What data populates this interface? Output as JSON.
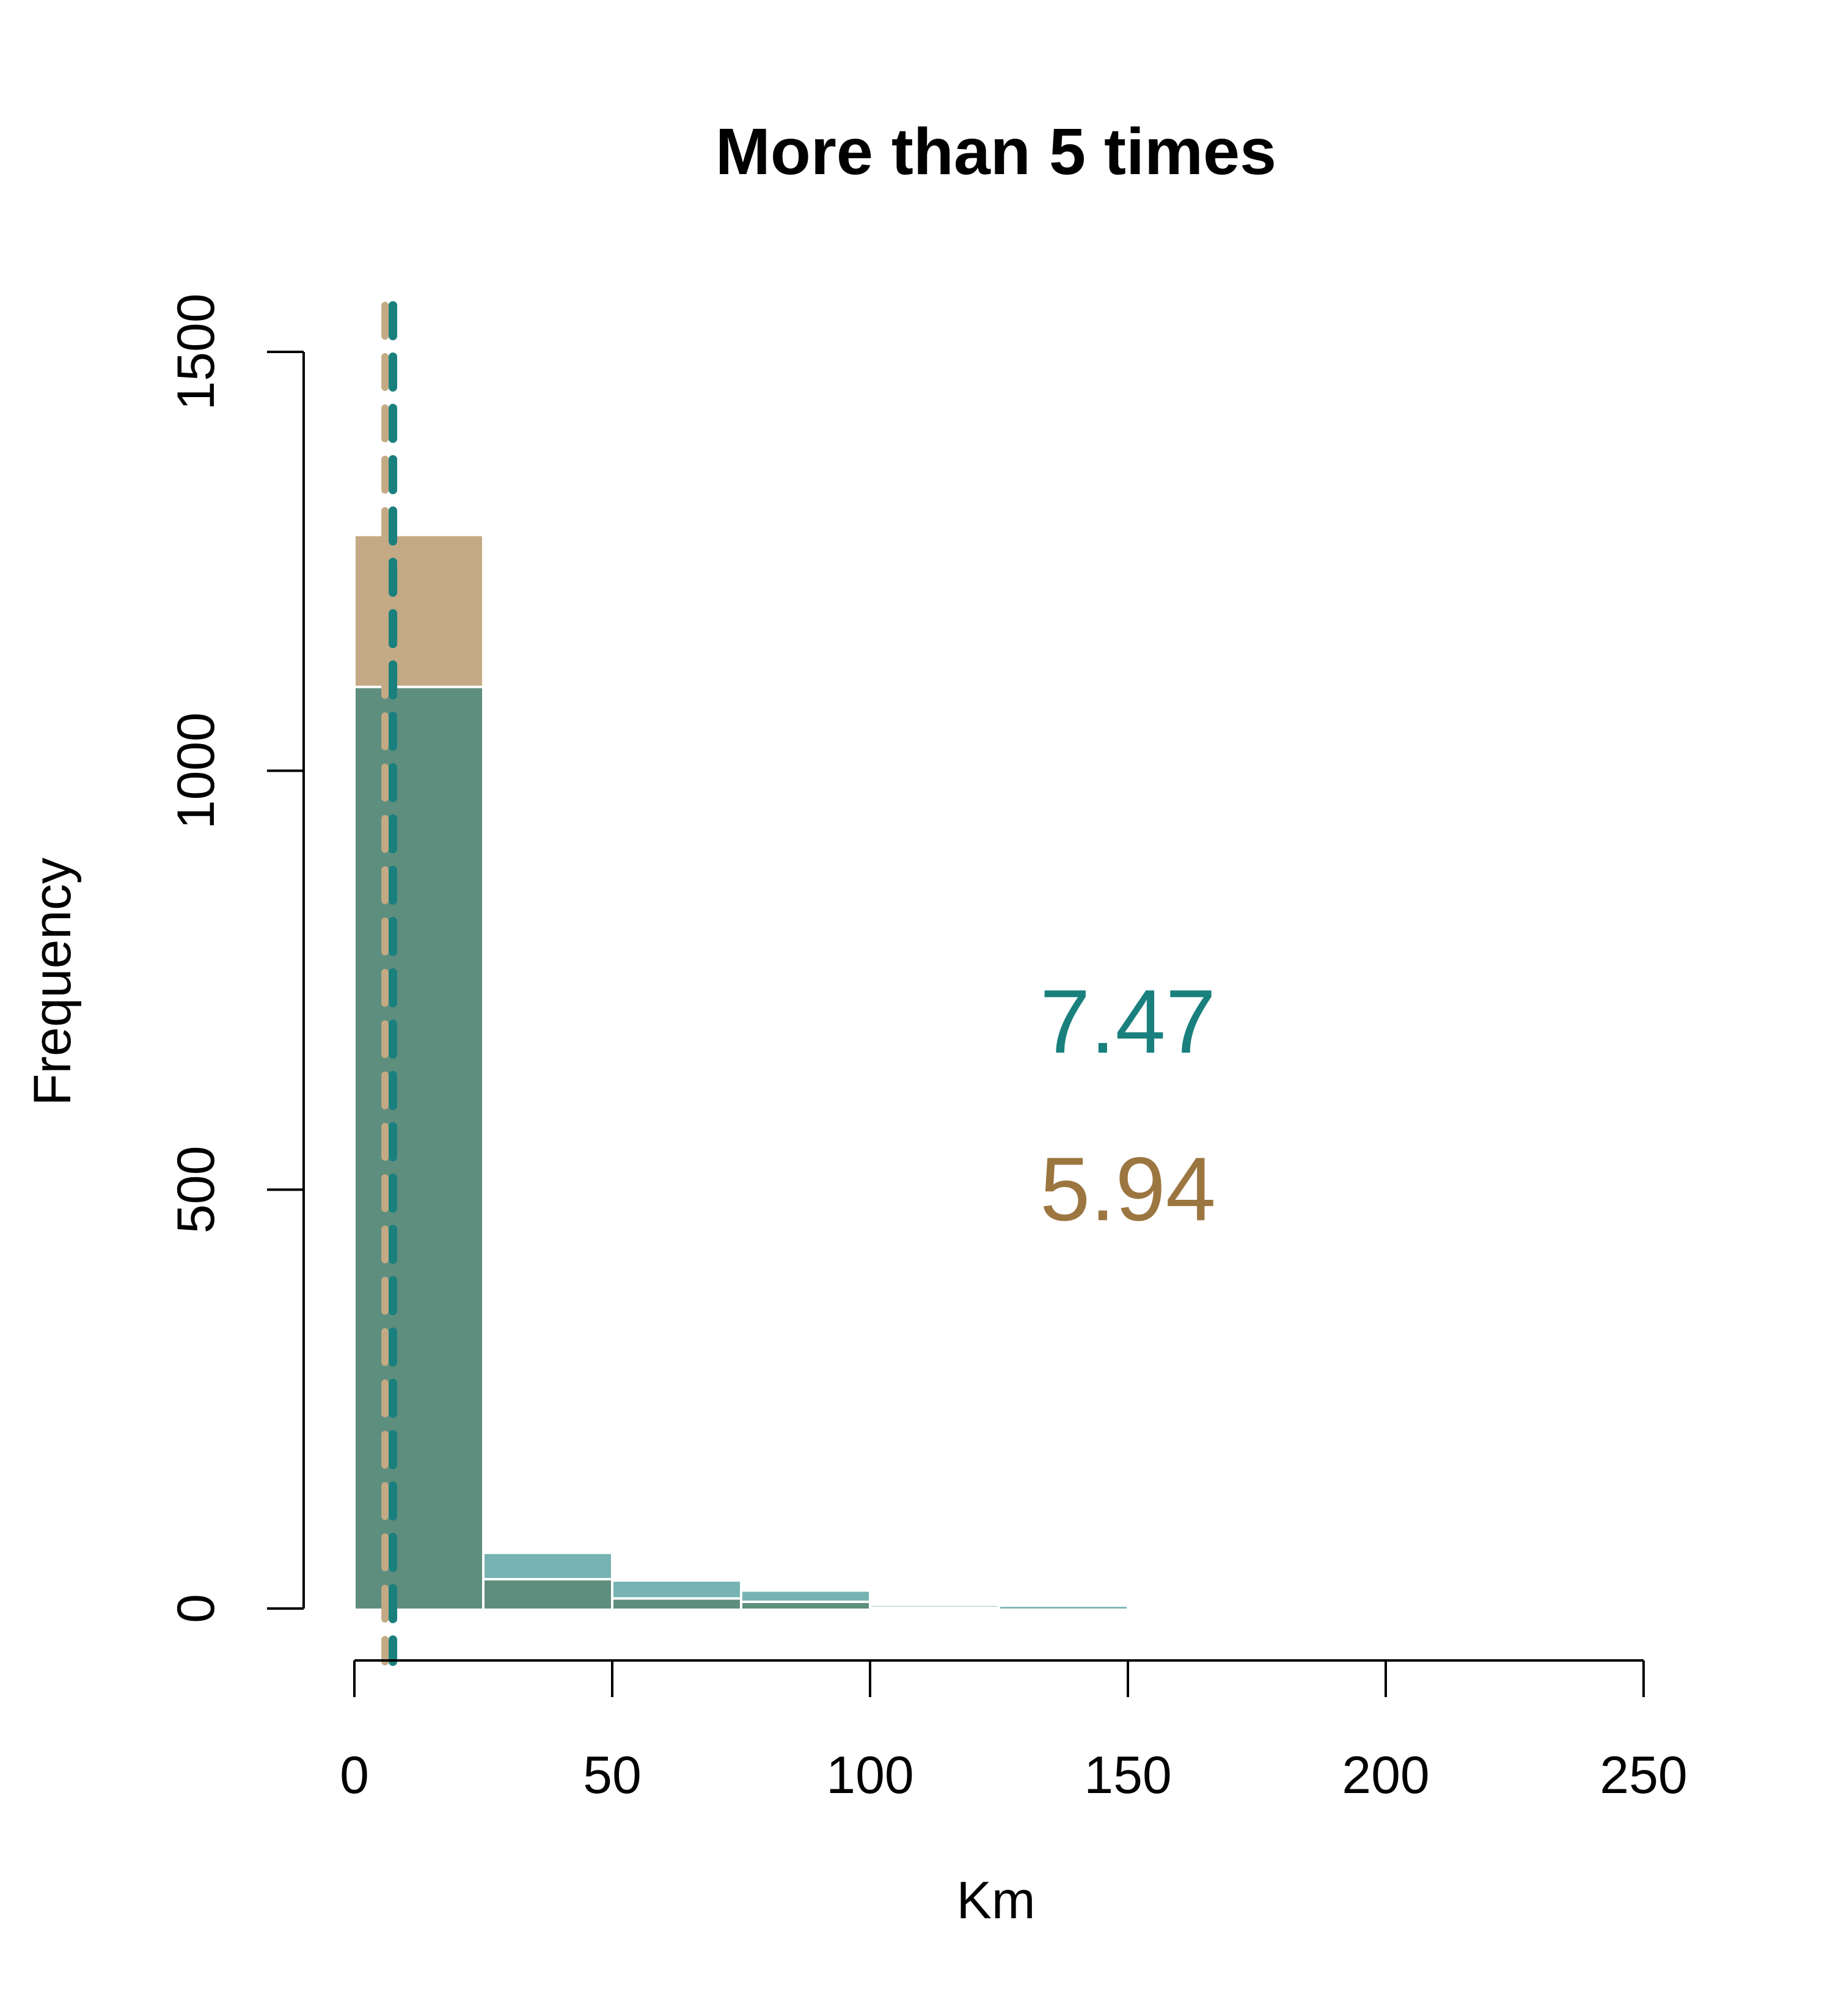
{
  "chart_data": {
    "type": "bar",
    "title": "More than 5 times",
    "xlabel": "Km",
    "ylabel": "Frequency",
    "xlim": [
      0,
      250
    ],
    "ylim": [
      0,
      1500
    ],
    "x_ticks": [
      "0",
      "50",
      "100",
      "150",
      "200",
      "250"
    ],
    "y_ticks": [
      "0",
      "500",
      "1000",
      "1500"
    ],
    "bin_edges": [
      0,
      25,
      50,
      75,
      100,
      125,
      150
    ],
    "series": [
      {
        "color": "#c4aa84",
        "values": [
          1280,
          35,
          12,
          8,
          1,
          0
        ]
      },
      {
        "color": "#1a807e",
        "values": [
          1100,
          65,
          32,
          20,
          3,
          2
        ]
      }
    ],
    "overlap_color": "#5e8e7e",
    "mean_lines": [
      {
        "value": 5.94,
        "color": "#c4aa84"
      },
      {
        "value": 7.47,
        "color": "#1a807e"
      }
    ],
    "annotations": [
      {
        "text": "7.47",
        "color": "#1a807e",
        "x": 150,
        "y": 700
      },
      {
        "text": "5.94",
        "color": "#9c7640",
        "x": 150,
        "y": 500
      }
    ],
    "grid": false
  }
}
